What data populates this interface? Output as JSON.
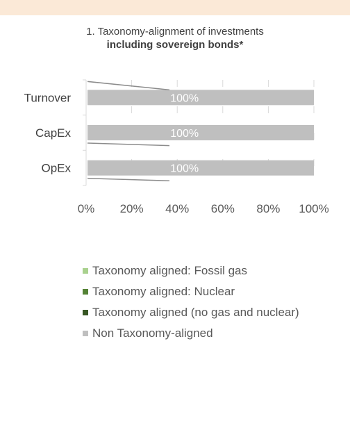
{
  "title": {
    "line1": "1. Taxonomy-alignment of investments",
    "line2": "including sovereign bonds*"
  },
  "chart_data": {
    "type": "bar",
    "orientation": "horizontal",
    "stacked": true,
    "categories": [
      "Turnover",
      "CapEx",
      "OpEx"
    ],
    "series": [
      {
        "name": "Taxonomy aligned: Fossil gas",
        "color": "#a9d18e",
        "values": [
          0,
          0,
          0
        ]
      },
      {
        "name": "Taxonomy aligned: Nuclear",
        "color": "#548235",
        "values": [
          0,
          0,
          0
        ]
      },
      {
        "name": "Taxonomy aligned (no gas and nuclear)",
        "color": "#375623",
        "values": [
          0,
          0,
          0
        ]
      },
      {
        "name": "Non Taxonomy-aligned",
        "color": "#bfbfbf",
        "values": [
          100,
          100,
          100
        ]
      }
    ],
    "data_labels": [
      "100%",
      "100%",
      "100%"
    ],
    "x_ticks": [
      "0%",
      "20%",
      "40%",
      "60%",
      "80%",
      "100%"
    ],
    "xlim": [
      0,
      100
    ],
    "grid": true,
    "legend_position": "bottom"
  }
}
